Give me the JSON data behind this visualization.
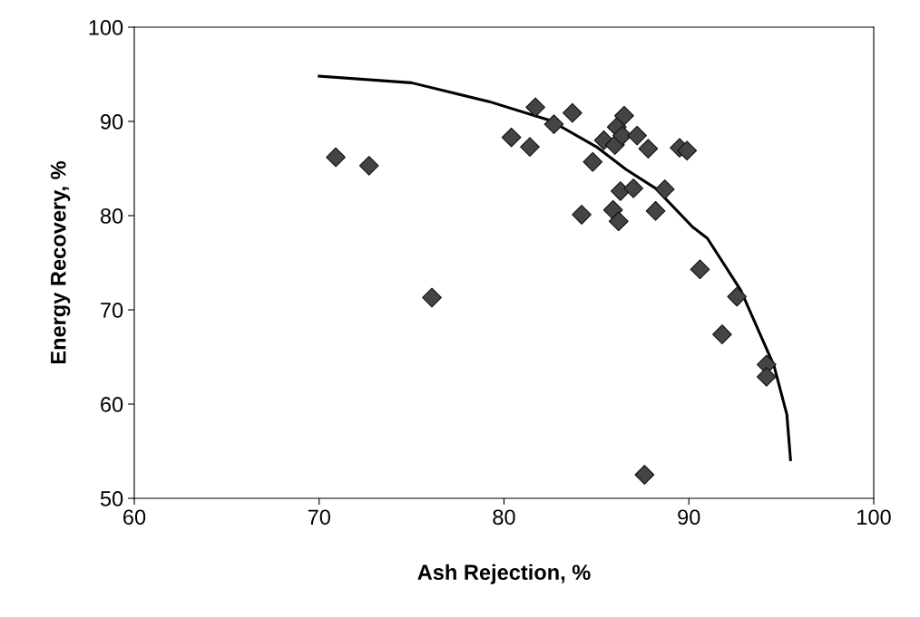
{
  "chart_data": {
    "type": "scatter",
    "xlabel": "Ash Rejection, %",
    "ylabel": "Energy Recovery, %",
    "xlim": [
      60,
      100
    ],
    "ylim": [
      50,
      100
    ],
    "xticks": [
      60,
      70,
      80,
      90,
      100
    ],
    "yticks": [
      50,
      60,
      70,
      80,
      90,
      100
    ],
    "grid": false,
    "legend": false,
    "marker": "diamond",
    "series": [
      {
        "color": "#444444",
        "x": [
          70.9,
          72.7,
          76.1,
          80.4,
          81.4,
          81.7,
          82.7,
          83.7,
          84.8,
          85.4,
          86.5,
          86.1,
          86.0,
          86.4,
          87.2,
          87.8,
          89.5,
          89.9,
          86.3,
          87.0,
          88.7,
          85.9,
          86.2,
          84.2,
          88.2,
          90.6,
          92.6,
          91.8,
          94.2,
          94.2,
          87.6
        ],
        "values": [
          86.2,
          85.3,
          71.3,
          88.3,
          87.3,
          91.5,
          89.7,
          90.9,
          85.7,
          88.0,
          90.6,
          89.4,
          87.5,
          88.5,
          88.5,
          87.1,
          87.2,
          86.9,
          82.6,
          82.9,
          82.8,
          80.6,
          79.4,
          80.1,
          80.5,
          74.3,
          71.4,
          67.4,
          64.2,
          62.9,
          52.5
        ]
      },
      {
        "type": "line",
        "color": "#000000",
        "marker": "none",
        "line_style": "solid",
        "x": [
          70.0,
          75.0,
          79.2,
          82.5,
          85.0,
          86.6,
          88.2,
          90.2,
          91.0,
          92.8,
          94.6,
          95.3,
          95.5
        ],
        "values": [
          94.8,
          94.1,
          92.1,
          90.1,
          87.3,
          84.9,
          82.9,
          78.8,
          77.6,
          72.1,
          64.1,
          58.9,
          54.1
        ]
      }
    ]
  }
}
